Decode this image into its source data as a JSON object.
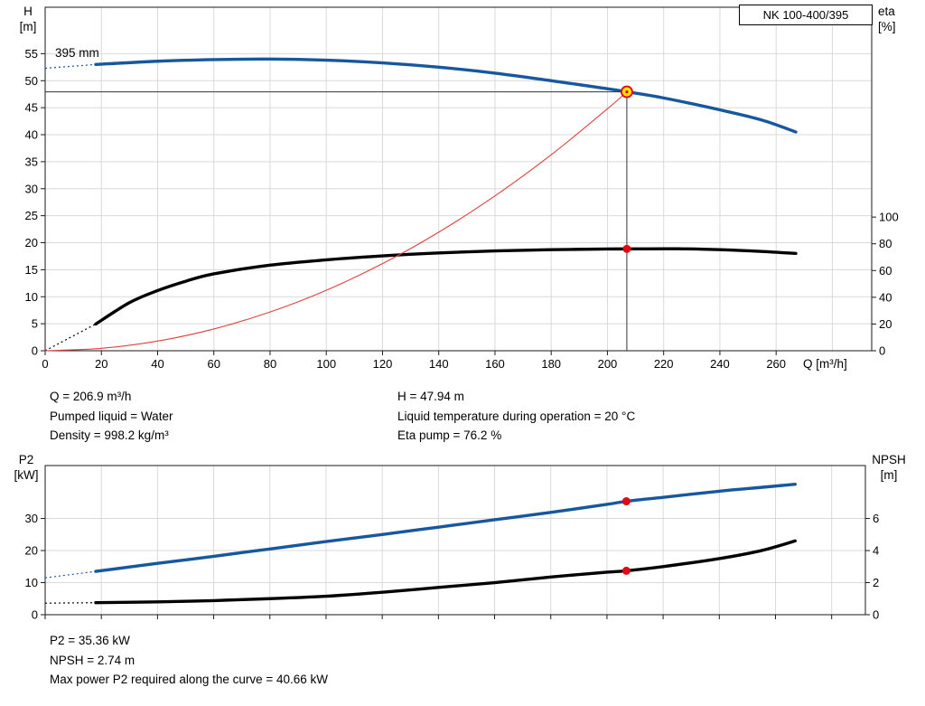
{
  "pump": {
    "model": "NK 100-400/395"
  },
  "colors": {
    "head": "#17579e",
    "eta": "#000000",
    "system": "#e04040",
    "p2": "#17579e",
    "npsh": "#000000",
    "grid": "#d9d9d9",
    "axis": "#1a1a1a",
    "crosshair": "#333333",
    "op_fill": "#ffe400",
    "op_ring": "#e30613",
    "dot": "#e30613"
  },
  "chart_data": [
    {
      "id": "qh-eta-chart",
      "type": "line",
      "curve_label": "395 mm",
      "grid": true,
      "legend": false,
      "x": {
        "title": "Q [m³/h]",
        "range": [
          0,
          294
        ],
        "ticks": [
          0,
          20,
          40,
          60,
          80,
          100,
          120,
          140,
          160,
          180,
          200,
          220,
          240,
          260
        ],
        "grid_step": 20,
        "grid_max": 280
      },
      "y_left": {
        "title_line1": "H",
        "title_line2": "[m]",
        "range": [
          0,
          63.6
        ],
        "ticks": [
          0,
          5,
          10,
          15,
          20,
          25,
          30,
          35,
          40,
          45,
          50,
          55
        ]
      },
      "y_right": {
        "title_line1": "eta",
        "title_line2": "[%]",
        "range": [
          0,
          257
        ],
        "ticks": [
          0,
          20,
          40,
          60,
          80,
          100
        ]
      },
      "series": [
        {
          "name": "head-curve",
          "axis": "left",
          "color_key": "head",
          "width": 3.4,
          "dash_lead": [
            [
              0,
              52.3
            ],
            [
              18,
              53
            ]
          ],
          "points": [
            [
              18,
              53
            ],
            [
              40,
              53.6
            ],
            [
              60,
              53.9
            ],
            [
              80,
              54
            ],
            [
              100,
              53.8
            ],
            [
              120,
              53.3
            ],
            [
              140,
              52.5
            ],
            [
              160,
              51.4
            ],
            [
              180,
              50
            ],
            [
              200,
              48.5
            ],
            [
              206.9,
              47.94
            ],
            [
              220,
              46.8
            ],
            [
              240,
              44.6
            ],
            [
              255,
              42.7
            ],
            [
              267,
              40.5
            ]
          ]
        },
        {
          "name": "efficiency-curve",
          "axis": "right",
          "color_key": "eta",
          "width": 3.4,
          "dash_lead": [
            [
              0,
              0
            ],
            [
              18,
              20
            ]
          ],
          "points": [
            [
              18,
              20
            ],
            [
              30,
              36
            ],
            [
              40,
              45
            ],
            [
              50,
              52
            ],
            [
              60,
              57.5
            ],
            [
              80,
              64
            ],
            [
              100,
              68
            ],
            [
              120,
              71
            ],
            [
              140,
              73.2
            ],
            [
              160,
              74.7
            ],
            [
              180,
              75.6
            ],
            [
              200,
              76.1
            ],
            [
              206.9,
              76.2
            ],
            [
              225,
              76.3
            ],
            [
              240,
              75.6
            ],
            [
              255,
              74.3
            ],
            [
              267,
              72.8
            ]
          ]
        },
        {
          "name": "system-curve",
          "axis": "left",
          "color_key": "system",
          "width": 1.1,
          "points": [
            [
              0,
              0
            ],
            [
              20,
              0.45
            ],
            [
              40,
              1.79
            ],
            [
              60,
              4.03
            ],
            [
              80,
              7.17
            ],
            [
              100,
              11.2
            ],
            [
              120,
              16.13
            ],
            [
              140,
              21.95
            ],
            [
              160,
              28.67
            ],
            [
              180,
              36.28
            ],
            [
              200,
              44.8
            ],
            [
              206.9,
              47.94
            ]
          ]
        }
      ],
      "operating_point": {
        "q": 206.9,
        "head": 47.94,
        "eta": 76.2
      }
    },
    {
      "id": "p2-npsh-chart",
      "type": "line",
      "grid": true,
      "legend": false,
      "x": {
        "range": [
          0,
          292
        ],
        "ticks": [
          0,
          20,
          40,
          60,
          80,
          100,
          120,
          140,
          160,
          180,
          200,
          220,
          240,
          260,
          280
        ],
        "grid_step": 20,
        "grid_max": 280,
        "labels_hidden": true
      },
      "y_left": {
        "title_line1": "P2",
        "title_line2": "[kW]",
        "range": [
          0,
          46.5
        ],
        "ticks": [
          0,
          10,
          20,
          30
        ]
      },
      "y_right": {
        "title_line1": "NPSH",
        "title_line2": "[m]",
        "range": [
          0,
          9.3
        ],
        "ticks": [
          0,
          2,
          4,
          6
        ]
      },
      "series": [
        {
          "name": "p2-curve",
          "axis": "left",
          "color_key": "p2",
          "width": 3.4,
          "dash_lead": [
            [
              0,
              11.5
            ],
            [
              18,
              13.5
            ]
          ],
          "points": [
            [
              18,
              13.5
            ],
            [
              40,
              16
            ],
            [
              60,
              18.2
            ],
            [
              80,
              20.5
            ],
            [
              100,
              22.8
            ],
            [
              120,
              25
            ],
            [
              140,
              27.3
            ],
            [
              160,
              29.6
            ],
            [
              180,
              31.9
            ],
            [
              200,
              34.4
            ],
            [
              206.9,
              35.36
            ],
            [
              220,
              36.6
            ],
            [
              240,
              38.5
            ],
            [
              255,
              39.7
            ],
            [
              267,
              40.66
            ]
          ]
        },
        {
          "name": "npsh-curve",
          "axis": "right",
          "color_key": "npsh",
          "width": 3.4,
          "dash_lead": [
            [
              0,
              0.72
            ],
            [
              18,
              0.75
            ]
          ],
          "points": [
            [
              18,
              0.75
            ],
            [
              40,
              0.8
            ],
            [
              60,
              0.88
            ],
            [
              80,
              1
            ],
            [
              100,
              1.15
            ],
            [
              120,
              1.4
            ],
            [
              140,
              1.7
            ],
            [
              160,
              2
            ],
            [
              180,
              2.35
            ],
            [
              200,
              2.65
            ],
            [
              206.9,
              2.74
            ],
            [
              220,
              3
            ],
            [
              240,
              3.5
            ],
            [
              255,
              4
            ],
            [
              267,
              4.6
            ]
          ]
        }
      ],
      "markers": [
        {
          "name": "p2-duty-dot",
          "axis": "left",
          "q": 206.9,
          "value": 35.36
        },
        {
          "name": "npsh-duty-dot",
          "axis": "right",
          "q": 206.9,
          "value": 2.74
        }
      ]
    }
  ],
  "texts": {
    "duty_col1": [
      "Q = 206.9 m³/h",
      "Pumped liquid = Water",
      "Density = 998.2 kg/m³"
    ],
    "duty_col2": [
      "H = 47.94 m",
      "Liquid temperature during operation = 20 °C",
      "Eta pump = 76.2 %"
    ],
    "bottom": [
      "P2 = 35.36 kW",
      "NPSH = 2.74 m",
      "Max power P2 required along the curve = 40.66 kW"
    ]
  }
}
